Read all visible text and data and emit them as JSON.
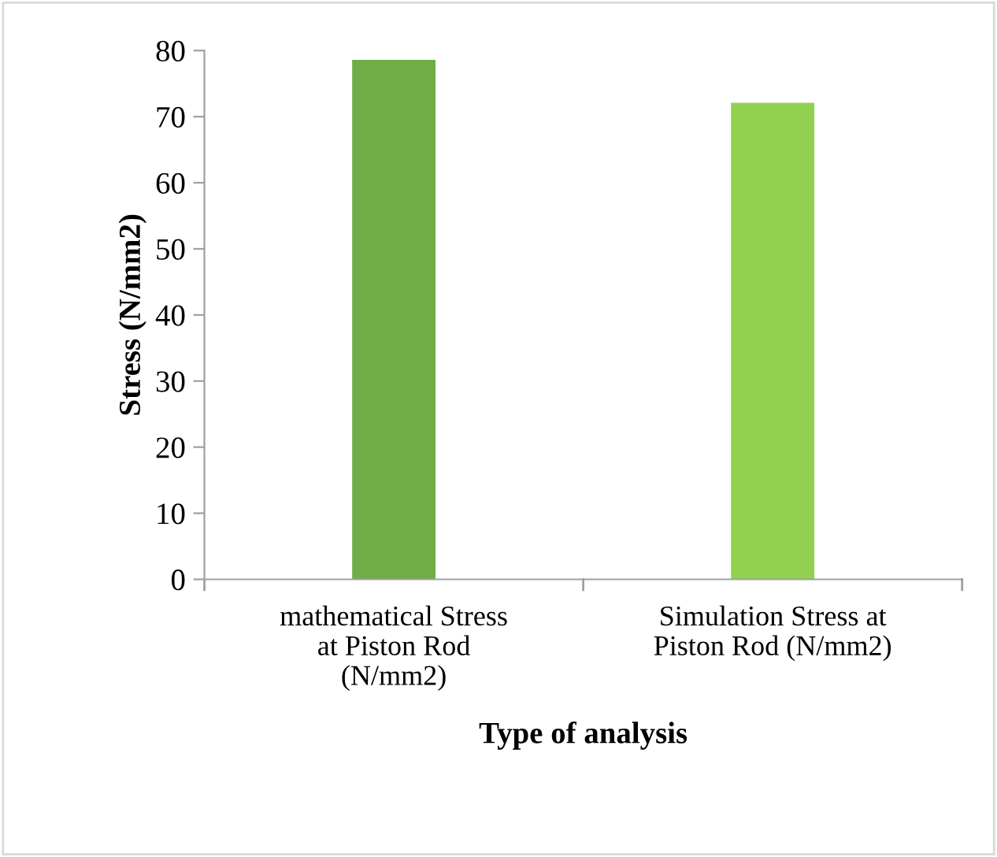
{
  "chart_data": {
    "type": "bar",
    "xlabel": "Type of analysis",
    "ylabel": "Stress (N/mm2)",
    "categories": [
      "mathematical Stress\nat Piston Rod\n(N/mm2)",
      "Simulation Stress at\nPiston Rod (N/mm2)"
    ],
    "values": [
      78.6,
      72.1
    ],
    "colors": [
      "#70ad47",
      "#92d050"
    ],
    "ylim": [
      0,
      80
    ],
    "yticks": [
      0,
      10,
      20,
      30,
      40,
      50,
      60,
      70,
      80
    ],
    "grid": false,
    "legend": false
  }
}
